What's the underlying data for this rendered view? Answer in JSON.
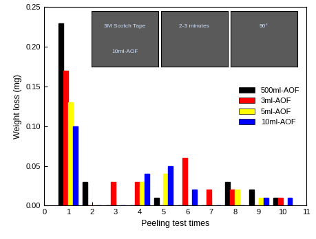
{
  "chart_data": {
    "type": "bar",
    "x_label": "Peeling test times",
    "y_label": "Weight loss (mg)",
    "x": [
      1,
      2,
      3,
      4,
      5,
      6,
      7,
      8,
      9,
      10
    ],
    "series": [
      {
        "name": "500ml-AOF",
        "color": "#000000",
        "values": [
          0.23,
          0.03,
          0,
          0,
          0.01,
          0,
          0,
          0.03,
          0.02,
          0.01
        ]
      },
      {
        "name": "3ml-AOF",
        "color": "#ff0000",
        "values": [
          0.17,
          0,
          0.03,
          0.03,
          0,
          0.06,
          0.02,
          0.02,
          0,
          0.01
        ]
      },
      {
        "name": "5ml-AOF",
        "color": "#ffff00",
        "values": [
          0.13,
          0,
          0,
          0.03,
          0.04,
          0,
          0,
          0.02,
          0.01,
          0
        ]
      },
      {
        "name": "10ml-AOF",
        "color": "#0000ff",
        "values": [
          0.1,
          0,
          0,
          0.04,
          0.05,
          0.02,
          0,
          0,
          0.01,
          0.01
        ]
      }
    ],
    "xlim": [
      0,
      11
    ],
    "xticks": [
      0,
      1,
      2,
      3,
      4,
      5,
      6,
      7,
      8,
      9,
      10,
      11
    ],
    "ylim": [
      0,
      0.25
    ],
    "yticks": [
      {
        "value": 0,
        "label": "0.00"
      },
      {
        "value": 0.05,
        "label": "0.05"
      },
      {
        "value": 0.1,
        "label": "0.10"
      },
      {
        "value": 0.15,
        "label": "0.15"
      },
      {
        "value": 0.2,
        "label": "0.20"
      },
      {
        "value": 0.25,
        "label": "0.25"
      }
    ],
    "legend": "center right",
    "annotations": [
      [
        "3M Scotch Tape",
        "10ml-AOF"
      ],
      [
        "2-3 minutes"
      ],
      [
        "90°"
      ]
    ]
  }
}
